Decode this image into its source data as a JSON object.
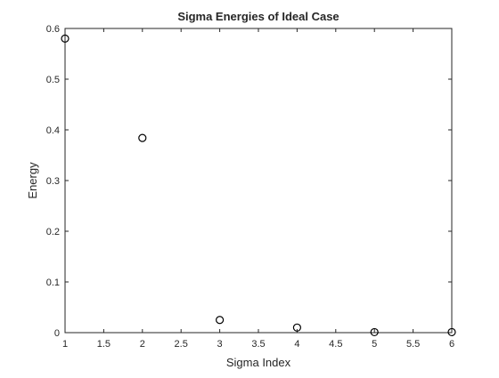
{
  "chart_data": {
    "type": "scatter",
    "title": "Sigma Energies of Ideal Case",
    "xlabel": "Sigma Index",
    "ylabel": "Energy",
    "xlim": [
      1,
      6
    ],
    "ylim": [
      0,
      0.6
    ],
    "xticks": [
      1,
      1.5,
      2,
      2.5,
      3,
      3.5,
      4,
      4.5,
      5,
      5.5,
      6
    ],
    "xtick_labels": [
      "1",
      "1.5",
      "2",
      "2.5",
      "3",
      "3.5",
      "4",
      "4.5",
      "5",
      "5.5",
      "6"
    ],
    "yticks": [
      0,
      0.1,
      0.2,
      0.3,
      0.4,
      0.5,
      0.6
    ],
    "ytick_labels": [
      "0",
      "0.1",
      "0.2",
      "0.3",
      "0.4",
      "0.5",
      "0.6"
    ],
    "grid": false,
    "marker": "circle-open",
    "series": [
      {
        "x": [
          1,
          2,
          3,
          4,
          5,
          6
        ],
        "y": [
          0.58,
          0.384,
          0.025,
          0.01,
          0.001,
          0.001
        ]
      }
    ],
    "colors": {
      "axis": "#262626",
      "marker": "#000000",
      "background": "#ffffff"
    }
  }
}
